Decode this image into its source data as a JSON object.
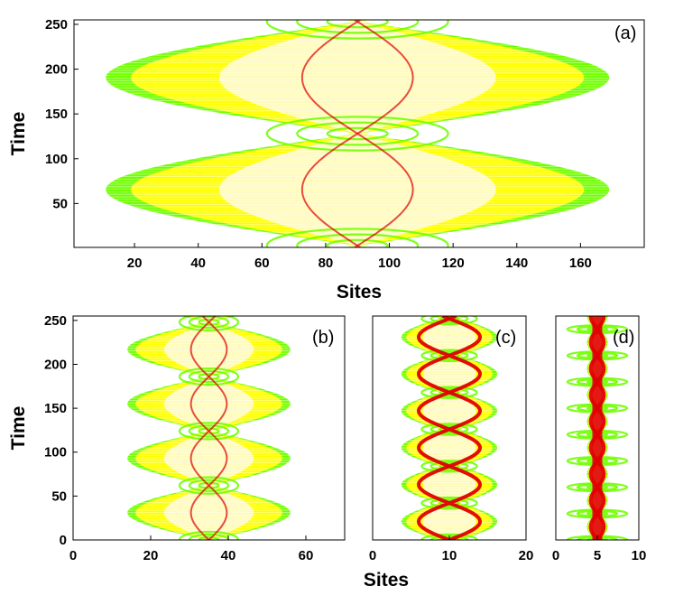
{
  "chart_data": [
    {
      "type": "heatmap",
      "panel_label": "(a)",
      "xlabel": "Sites",
      "ylabel": "Time",
      "xlim": [
        1,
        180
      ],
      "ylim": [
        1,
        255
      ],
      "xticks": [
        20,
        40,
        60,
        80,
        100,
        120,
        140,
        160
      ],
      "yticks": [
        50,
        100,
        150,
        200,
        250
      ],
      "center_site": 90,
      "max_half_width": 79,
      "revival_period": 125,
      "phase_time": 3,
      "colors": [
        "#ffff00",
        "#70ff00",
        "#e00000"
      ]
    },
    {
      "type": "heatmap",
      "panel_label": "(b)",
      "xlabel": "",
      "ylabel": "Time",
      "xlim": [
        0,
        70
      ],
      "ylim": [
        0,
        255
      ],
      "xticks": [
        0,
        20,
        40,
        60
      ],
      "yticks": [
        0,
        50,
        100,
        150,
        200,
        250
      ],
      "center_site": 35,
      "max_half_width": 21,
      "revival_period": 62,
      "phase_time": 0,
      "colors": [
        "#ffff00",
        "#70ff00",
        "#e00000"
      ]
    },
    {
      "type": "heatmap",
      "panel_label": "(c)",
      "xlabel": "",
      "ylabel": "",
      "xlim": [
        0,
        20
      ],
      "ylim": [
        0,
        255
      ],
      "xticks": [
        0,
        10,
        20
      ],
      "yticks": [],
      "center_site": 10,
      "max_half_width": 5,
      "revival_period": 42,
      "phase_time": 0,
      "colors": [
        "#ffff00",
        "#70ff00",
        "#e00000"
      ]
    },
    {
      "type": "heatmap",
      "panel_label": "(d)",
      "xlabel": "",
      "ylabel": "",
      "xlim": [
        0,
        10
      ],
      "ylim": [
        0,
        255
      ],
      "xticks": [
        0,
        5,
        10
      ],
      "yticks": [],
      "center_site": 5,
      "max_half_width": 1,
      "revival_period": 30,
      "phase_time": 0,
      "colors": [
        "#ffff00",
        "#70ff00",
        "#e00000"
      ]
    }
  ],
  "bottom_xlabel": "Sites"
}
